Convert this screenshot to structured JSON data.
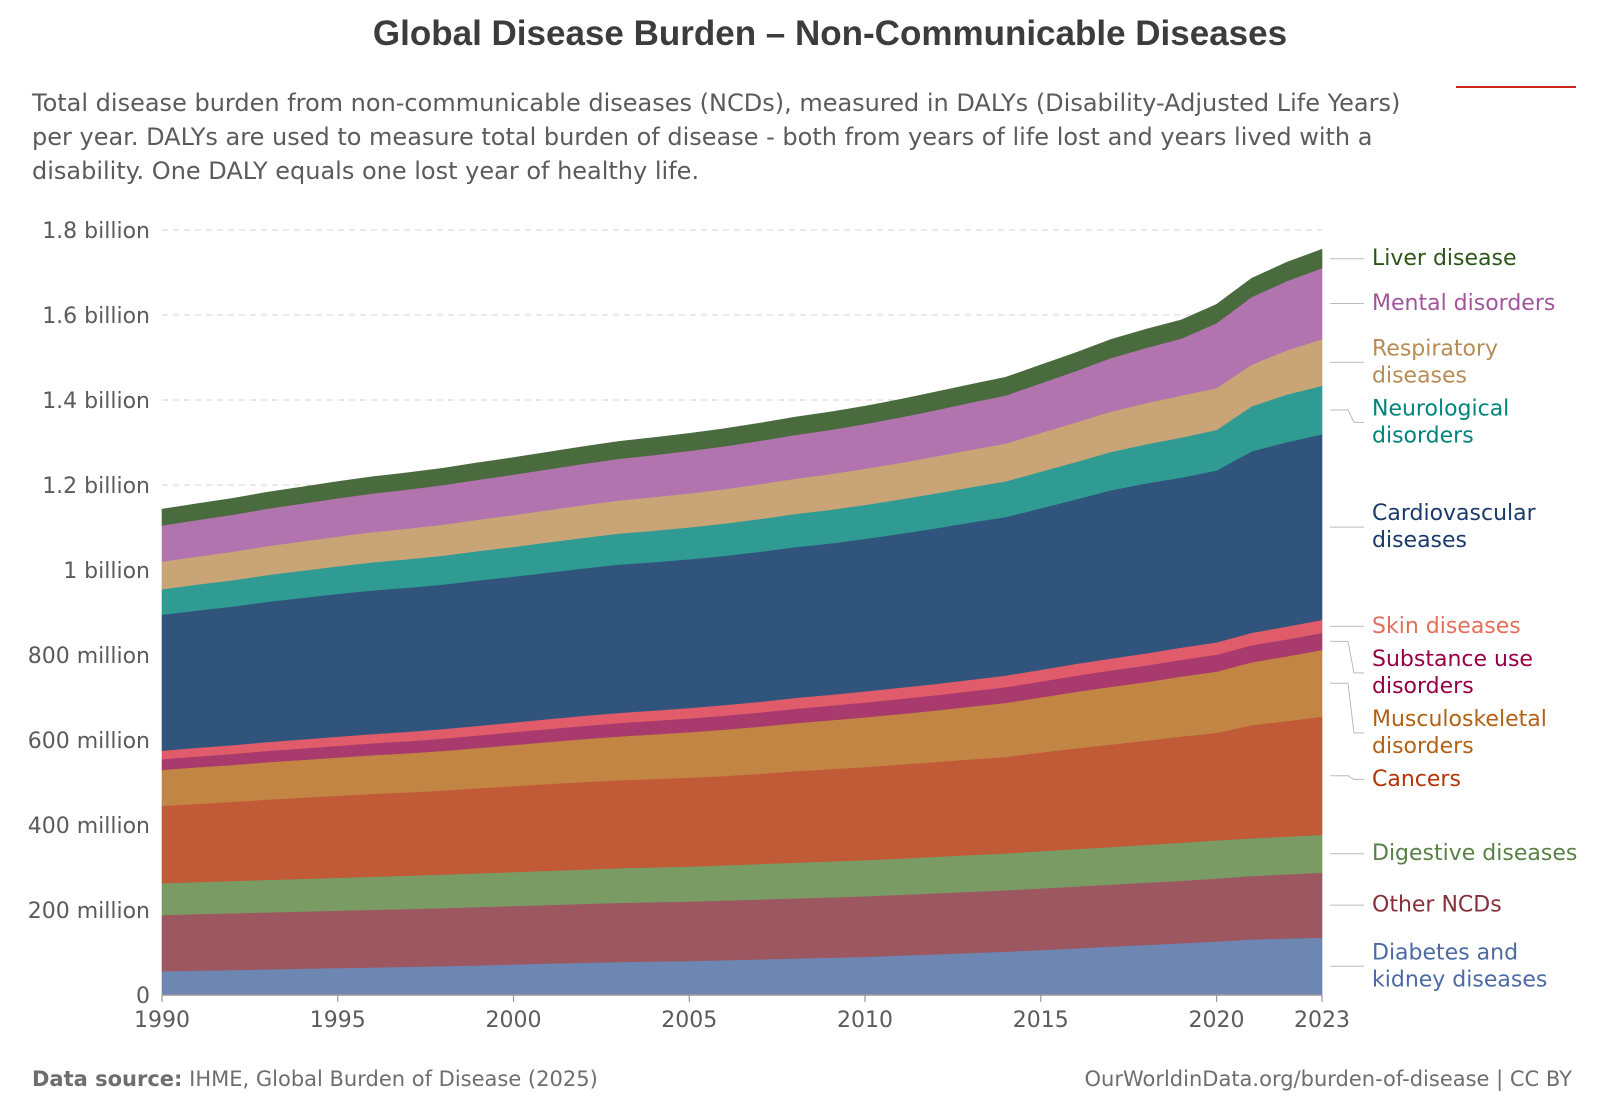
{
  "header": {
    "title": "Global Disease Burden – Non-Communicable Diseases",
    "subtitle": "Total disease burden from non-communicable diseases (NCDs), measured in DALYs (Disability-Adjusted Life Years) per year. DALYs are used to measure total burden of disease - both from years of life lost and years lived with a disability. One DALY equals one lost year of healthy life."
  },
  "footer": {
    "source_label": "Data source:",
    "source_text": "IHME, Global Burden of Disease (2025)",
    "url_text": "OurWorldinData.org/burden-of-disease | CC BY"
  },
  "colors": {
    "accent": "#ce261e"
  },
  "chart_data": {
    "type": "area",
    "stacked": true,
    "title": "Global Disease Burden – Non-Communicable Diseases",
    "xlabel": "",
    "ylabel": "",
    "x": [
      1990,
      1991,
      1992,
      1993,
      1994,
      1995,
      1996,
      1997,
      1998,
      1999,
      2000,
      2001,
      2002,
      2003,
      2004,
      2005,
      2006,
      2007,
      2008,
      2009,
      2010,
      2011,
      2012,
      2013,
      2014,
      2015,
      2016,
      2017,
      2018,
      2019,
      2020,
      2021,
      2022,
      2023
    ],
    "ylim": [
      0,
      1800000000
    ],
    "x_ticks": [
      {
        "value": 1990,
        "label": "1990"
      },
      {
        "value": 1995,
        "label": "1995"
      },
      {
        "value": 2000,
        "label": "2000"
      },
      {
        "value": 2005,
        "label": "2005"
      },
      {
        "value": 2010,
        "label": "2010"
      },
      {
        "value": 2015,
        "label": "2015"
      },
      {
        "value": 2020,
        "label": "2020"
      },
      {
        "value": 2023,
        "label": "2023"
      }
    ],
    "y_ticks": [
      {
        "value": 0,
        "label": "0"
      },
      {
        "value": 200000000,
        "label": "200 million"
      },
      {
        "value": 400000000,
        "label": "400 million"
      },
      {
        "value": 600000000,
        "label": "600 million"
      },
      {
        "value": 800000000,
        "label": "800 million"
      },
      {
        "value": 1000000000,
        "label": "1 billion"
      },
      {
        "value": 1200000000,
        "label": "1.2 billion"
      },
      {
        "value": 1400000000,
        "label": "1.4 billion"
      },
      {
        "value": 1600000000,
        "label": "1.6 billion"
      },
      {
        "value": 1800000000,
        "label": "1.8 billion"
      }
    ],
    "legend_position": "right",
    "series": [
      {
        "id": "diabetes-kidney",
        "label_lines": [
          "Diabetes and",
          "kidney diseases"
        ],
        "fill": "#6d86b2",
        "text_color": "#4c6aa6",
        "values": [
          56,
          57.5,
          59,
          60.5,
          62,
          63.5,
          65,
          66.5,
          68,
          70,
          72,
          74,
          76,
          78,
          79,
          80,
          82,
          84,
          86,
          88,
          90,
          93,
          96,
          99,
          102,
          106,
          110,
          114,
          118,
          122,
          126,
          131,
          133,
          135
        ]
      },
      {
        "id": "other-ncds",
        "label_lines": [
          "Other NCDs"
        ],
        "fill": "#9c5760",
        "text_color": "#883039",
        "values": [
          132,
          133,
          133.5,
          134,
          134.5,
          135,
          135.5,
          136,
          136.5,
          137,
          137.5,
          138,
          138.5,
          139,
          139.5,
          140,
          140.5,
          141,
          141.5,
          142,
          142.5,
          143,
          143.5,
          144,
          144.5,
          145,
          145.5,
          146,
          146.5,
          147,
          148,
          149,
          151,
          153
        ]
      },
      {
        "id": "digestive",
        "label_lines": [
          "Digestive diseases"
        ],
        "fill": "#7a9b64",
        "text_color": "#578145",
        "values": [
          75,
          75.5,
          76,
          76.5,
          77,
          77.5,
          78,
          78.5,
          79,
          79.5,
          80,
          80.5,
          81,
          81.5,
          82,
          82.5,
          83,
          83.5,
          84,
          84.5,
          85,
          85.5,
          86,
          86.5,
          87,
          87.5,
          88,
          88.5,
          89,
          89.5,
          90,
          89,
          89,
          89
        ]
      },
      {
        "id": "cancers",
        "label_lines": [
          "Cancers"
        ],
        "fill": "#c05a37",
        "text_color": "#b13507",
        "values": [
          182,
          184,
          186,
          189,
          191,
          193,
          195,
          196,
          198,
          200,
          202,
          204,
          206,
          207,
          208,
          209,
          210,
          212,
          215,
          217,
          219,
          221,
          223,
          225,
          227,
          232,
          237,
          241,
          245,
          250,
          253,
          266,
          272,
          278
        ]
      },
      {
        "id": "musculoskeletal",
        "label_lines": [
          "Musculoskeletal",
          "disorders"
        ],
        "fill": "#c38543",
        "text_color": "#b16214",
        "values": [
          85,
          86,
          87,
          88,
          89,
          90,
          91,
          92,
          93,
          95,
          97,
          99,
          101,
          103,
          105,
          107,
          109,
          111,
          113,
          115,
          117,
          119,
          121,
          124,
          127,
          130,
          133,
          136,
          138,
          141,
          144,
          148,
          152,
          157
        ]
      },
      {
        "id": "substance-use",
        "label_lines": [
          "Substance use",
          "disorders"
        ],
        "fill": "#a93a6d",
        "text_color": "#970046",
        "values": [
          25,
          25.5,
          26,
          26.5,
          27,
          27.5,
          28,
          28.5,
          29,
          29.5,
          30,
          30.5,
          31,
          31.5,
          32,
          32.5,
          33,
          33.5,
          34,
          34.5,
          35,
          35.5,
          36,
          36.5,
          37,
          37.5,
          38,
          38.5,
          39,
          39.5,
          40,
          40,
          40,
          40
        ]
      },
      {
        "id": "skin",
        "label_lines": [
          "Skin diseases"
        ],
        "fill": "#e15c6b",
        "text_color": "#e56e5a",
        "values": [
          20,
          20.3,
          20.6,
          20.9,
          21.2,
          21.5,
          21.8,
          22.1,
          22.4,
          22.7,
          23,
          23.3,
          23.6,
          23.9,
          24.2,
          24.5,
          24.8,
          25.1,
          25.4,
          25.7,
          26,
          26.3,
          26.6,
          26.9,
          27.2,
          27.5,
          27.8,
          28.1,
          28.4,
          28.7,
          29,
          29.5,
          30,
          30.5
        ]
      },
      {
        "id": "cardiovascular",
        "label_lines": [
          "Cardiovascular",
          "diseases"
        ],
        "fill": "#31547c",
        "text_color": "#1a3a6b",
        "values": [
          320,
          323,
          326,
          330,
          333,
          336,
          338,
          339,
          340,
          342,
          343,
          345,
          347,
          349,
          349,
          350,
          351,
          353,
          355,
          356,
          359,
          362,
          366,
          370,
          373,
          380,
          387,
          396,
          400,
          400,
          404,
          427,
          434,
          437
        ]
      },
      {
        "id": "neurological",
        "label_lines": [
          "Neurological",
          "disorders"
        ],
        "fill": "#2f9b92",
        "text_color": "#00847e",
        "values": [
          60,
          61,
          62,
          63,
          64,
          65,
          66,
          67,
          68,
          69,
          70,
          71,
          72,
          73,
          74,
          75,
          76,
          77,
          78,
          79,
          80,
          81,
          82,
          83,
          84,
          86,
          88,
          90,
          92,
          94,
          96,
          106,
          112,
          114
        ]
      },
      {
        "id": "respiratory",
        "label_lines": [
          "Respiratory",
          "diseases"
        ],
        "fill": "#c9a476",
        "text_color": "#b88c55",
        "values": [
          65,
          66,
          67,
          68,
          69,
          70,
          71,
          72,
          73,
          74,
          75,
          76,
          77,
          78,
          79,
          80,
          81,
          82,
          83,
          84,
          85,
          86,
          87,
          88,
          89,
          91,
          93,
          95,
          97,
          99,
          98,
          98,
          104,
          110
        ]
      },
      {
        "id": "mental",
        "label_lines": [
          "Mental disorders"
        ],
        "fill": "#b174ae",
        "text_color": "#a2559c",
        "values": [
          85,
          86,
          87,
          88,
          89,
          90,
          91,
          92,
          93,
          94,
          95,
          96,
          97,
          98,
          99,
          100,
          101,
          102,
          103,
          104,
          105,
          107,
          109,
          111,
          113,
          117,
          121,
          126,
          130,
          134,
          153,
          159,
          163,
          167
        ]
      },
      {
        "id": "liver",
        "label_lines": [
          "Liver disease"
        ],
        "fill": "#4a6b3d",
        "text_color": "#2c5617",
        "values": [
          38,
          38.2,
          38.4,
          38.6,
          38.8,
          39,
          39.2,
          39.4,
          39.6,
          39.8,
          40,
          40.2,
          40.4,
          40.6,
          40.8,
          41,
          41.2,
          41.4,
          41.6,
          41.8,
          42,
          42.2,
          42.4,
          42.6,
          42.8,
          43,
          43.2,
          43.4,
          43.6,
          43.8,
          44,
          44,
          44,
          44
        ]
      }
    ],
    "value_unit_note": "series values are in millions of DALYs"
  }
}
